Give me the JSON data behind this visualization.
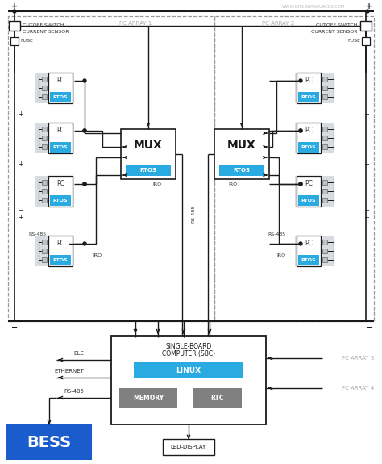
{
  "bg_color": "#ffffff",
  "lc": "#1a1a1a",
  "colors": {
    "rtos_fill": "#29abe2",
    "pc_bg": "#d8dce0",
    "mux_fill": "#ffffff",
    "sbc_fill": "#ffffff",
    "memory_fill": "#808080",
    "linux_fill": "#29abe2",
    "bess_fill": "#1a5ccc",
    "dashed_ec": "#999999",
    "label_gray": "#888888",
    "array_label": "#aaaaaa",
    "cap_fill": "#c0c0c0",
    "cap_ec": "#666666"
  },
  "watermark": "WWW.INTEGRASOURCES.COM",
  "pc_array1_label": "PC ARRAY 1",
  "pc_array2_label": "PC ARRAY 2",
  "pc_array3_label": "PC ARRAY 3",
  "pc_array4_label": "PC ARRAY 4"
}
